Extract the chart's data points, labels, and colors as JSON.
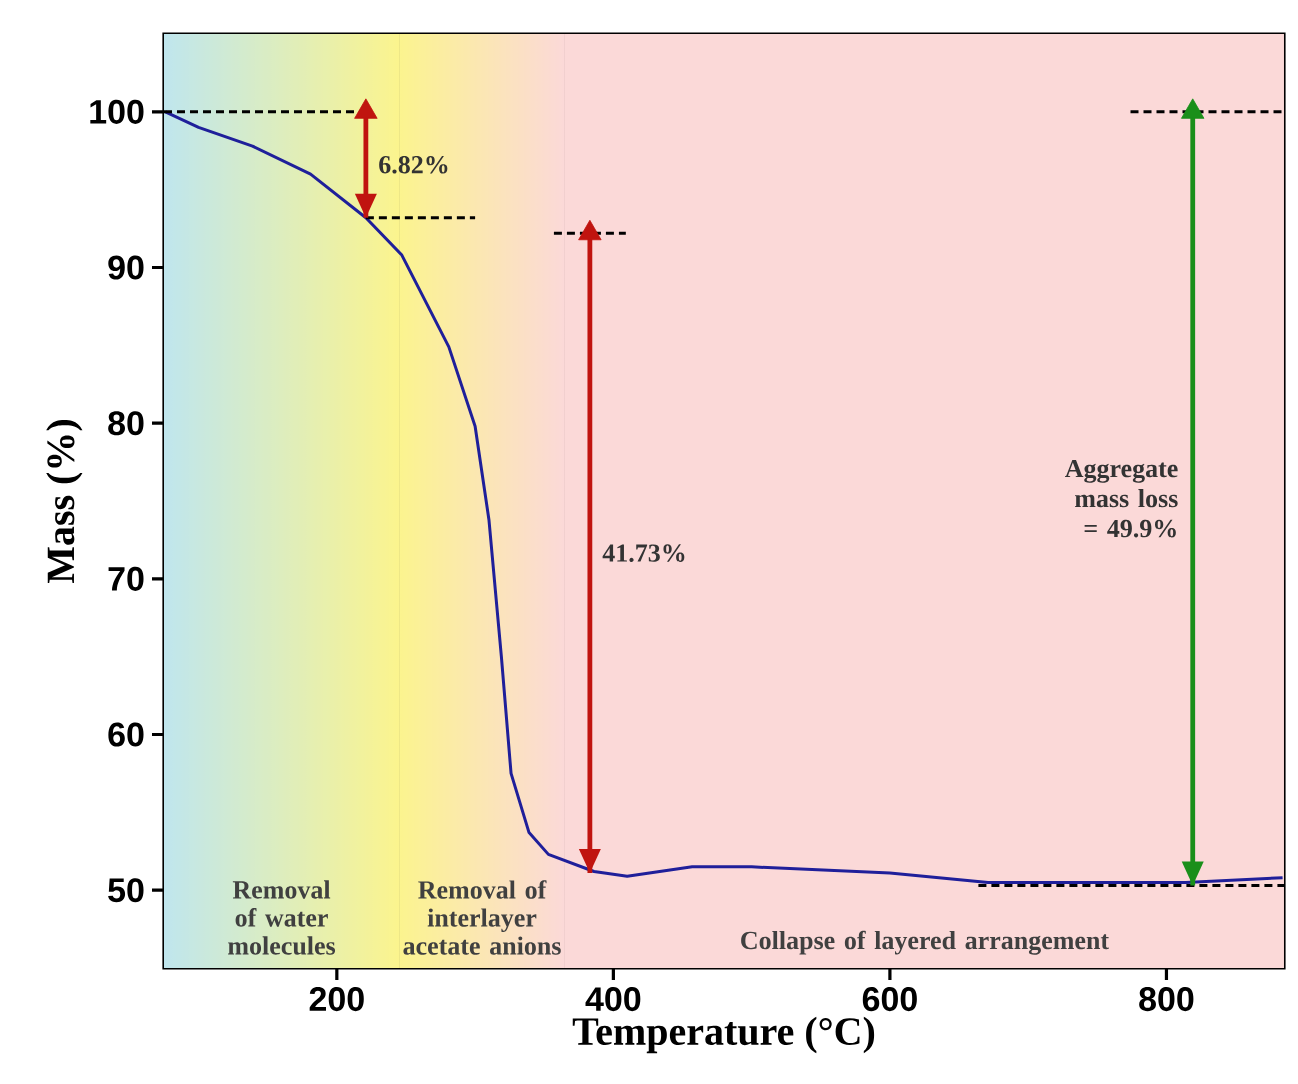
{
  "chart_data": {
    "type": "line",
    "xlabel": "Temperature (°C)",
    "ylabel": "Mass (%)",
    "xlim": [
      75,
      885
    ],
    "ylim": [
      45,
      105
    ],
    "xticks": [
      200,
      400,
      600,
      800
    ],
    "yticks": [
      50,
      60,
      70,
      80,
      90,
      100
    ],
    "bands": [
      {
        "axis": "x",
        "from": 75,
        "to": 245,
        "label": "Removal of water molecules",
        "color": "#bfe6ee"
      },
      {
        "axis": "x",
        "from": 245,
        "to": 365,
        "label": "Removal of interlayer acetate anions",
        "color": "#fbf48e"
      },
      {
        "axis": "x",
        "from": 365,
        "to": 885,
        "label": "Collapse of layered arrangement",
        "color": "#fbd9d8"
      }
    ],
    "series": [
      {
        "color": "#1f1f9a",
        "x": [
          76,
          100,
          139,
          181,
          221,
          247,
          281,
          300,
          310,
          319,
          326,
          339,
          353,
          386,
          410,
          457,
          500,
          600,
          671,
          814,
          884
        ],
        "values": [
          100,
          99.0,
          97.8,
          96.0,
          93.2,
          90.8,
          84.9,
          79.8,
          73.8,
          65,
          57.5,
          53.7,
          52.3,
          51.2,
          50.9,
          51.5,
          51.5,
          51.1,
          50.5,
          50.5,
          50.8
        ]
      },
      {
        "color": "#000000",
        "line_style": "dashed",
        "x": [
          75,
          221
        ],
        "values": [
          100,
          100
        ]
      },
      {
        "color": "#000000",
        "line_style": "dashed",
        "x": [
          221,
          300
        ],
        "values": [
          93.2,
          93.2
        ]
      },
      {
        "color": "#000000",
        "line_style": "dashed",
        "x": [
          357,
          409
        ],
        "values": [
          92.2,
          92.2
        ]
      },
      {
        "color": "#000000",
        "line_style": "dashed",
        "x": [
          774,
          885
        ],
        "values": [
          100,
          100
        ]
      },
      {
        "color": "#000000",
        "line_style": "dashed",
        "x": [
          664,
          885
        ],
        "values": [
          50.3,
          50.3
        ]
      },
      {
        "type": "scatter",
        "marker": "triangle",
        "colors": [
          "#c0140f",
          "#c0140f",
          "#1a8f1a"
        ],
        "x": [
          221,
          383,
          819
        ],
        "values": [
          100,
          92.2,
          100
        ],
        "errors": [
          [
            93.2,
            100
          ],
          [
            51.1,
            92.2
          ],
          [
            50.3,
            100
          ]
        ]
      }
    ],
    "annotations": [
      "6.82%",
      "41.73%",
      "Aggregate mass loss = 49.9%"
    ]
  }
}
